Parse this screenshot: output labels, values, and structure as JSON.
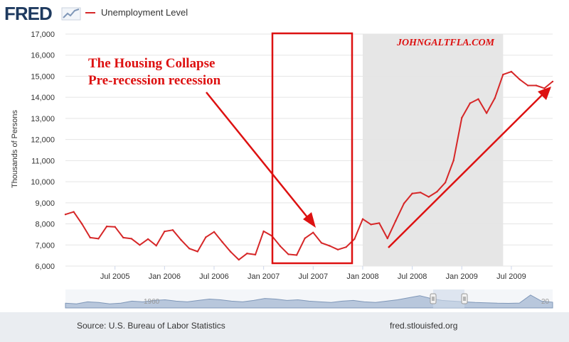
{
  "header": {
    "logo": "FRED",
    "spark_icon": "fred-chart-icon",
    "legend_label": "Unemployment Level"
  },
  "colors": {
    "series": "#d62728",
    "annotation": "#dd1111",
    "recession_shade": "#e6e6e6",
    "grid": "#e5e5e5",
    "navigator_fill": "#b8c7dc"
  },
  "footer": {
    "source": "Source: U.S. Bureau of Labor Statistics",
    "url": "fred.stlouisfed.org"
  },
  "chart_data": {
    "type": "line",
    "title": "",
    "xlabel": "",
    "ylabel": "Thousands of Persons",
    "ylim": [
      6000,
      17000
    ],
    "y_ticks": [
      6000,
      7000,
      8000,
      9000,
      10000,
      11000,
      12000,
      13000,
      14000,
      15000,
      16000,
      17000
    ],
    "y_tick_labels": [
      "6,000",
      "7,000",
      "8,000",
      "9,000",
      "10,000",
      "11,000",
      "12,000",
      "13,000",
      "14,000",
      "15,000",
      "16,000",
      "17,000"
    ],
    "x_range": [
      "2005-01",
      "2009-12"
    ],
    "x_ticks": [
      "2005-07",
      "2006-01",
      "2006-07",
      "2007-01",
      "2007-07",
      "2008-01",
      "2008-07",
      "2009-01",
      "2009-07"
    ],
    "x_tick_labels": [
      "Jul 2005",
      "Jan 2006",
      "Jul 2006",
      "Jan 2007",
      "Jul 2007",
      "Jan 2008",
      "Jul 2008",
      "Jan 2009",
      "Jul 2009"
    ],
    "grid": true,
    "recession": {
      "start": "2008-01",
      "end": "2009-06"
    },
    "series": [
      {
        "name": "Unemployment Level",
        "x": [
          "2005-01",
          "2005-02",
          "2005-03",
          "2005-04",
          "2005-05",
          "2005-06",
          "2005-07",
          "2005-08",
          "2005-09",
          "2005-10",
          "2005-11",
          "2005-12",
          "2006-01",
          "2006-02",
          "2006-03",
          "2006-04",
          "2006-05",
          "2006-06",
          "2006-07",
          "2006-08",
          "2006-09",
          "2006-10",
          "2006-11",
          "2006-12",
          "2007-01",
          "2007-02",
          "2007-03",
          "2007-04",
          "2007-05",
          "2007-06",
          "2007-07",
          "2007-08",
          "2007-09",
          "2007-10",
          "2007-11",
          "2007-12",
          "2008-01",
          "2008-02",
          "2008-03",
          "2008-04",
          "2008-05",
          "2008-06",
          "2008-07",
          "2008-08",
          "2008-09",
          "2008-10",
          "2008-11",
          "2008-12",
          "2009-01",
          "2009-02",
          "2009-03",
          "2009-04",
          "2009-05",
          "2009-06",
          "2009-07",
          "2009-08",
          "2009-09",
          "2009-10",
          "2009-11",
          "2009-12"
        ],
        "values": [
          8450,
          8570,
          8000,
          7350,
          7300,
          7880,
          7860,
          7350,
          7300,
          7000,
          7280,
          6970,
          7640,
          7710,
          7240,
          6830,
          6690,
          7370,
          7620,
          7140,
          6680,
          6300,
          6600,
          6540,
          7650,
          7430,
          6950,
          6560,
          6520,
          7320,
          7590,
          7100,
          6960,
          6780,
          6900,
          7280,
          8230,
          7970,
          8040,
          7310,
          8150,
          8970,
          9440,
          9490,
          9280,
          9530,
          9960,
          11010,
          13030,
          13720,
          13920,
          13250,
          13960,
          15080,
          15220,
          14850,
          14560,
          14560,
          14430,
          14750
        ]
      }
    ],
    "annotations": [
      {
        "text": "The Housing Collapse"
      },
      {
        "text": "Pre-recession recession"
      },
      {
        "text": "JOHNGALTFLA.COM"
      }
    ],
    "navigator": {
      "labels": [
        "1960",
        "20"
      ]
    }
  }
}
